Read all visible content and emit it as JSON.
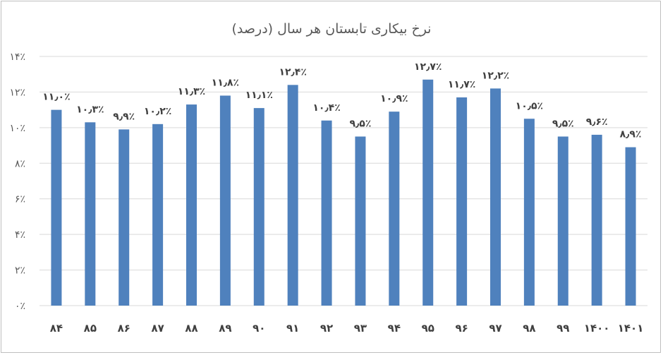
{
  "chart_data": {
    "type": "bar",
    "title": "نرخ بیکاری تابستان هر سال (درصد)",
    "xlabel": "",
    "ylabel": "",
    "categories": [
      "۸۴",
      "۸۵",
      "۸۶",
      "۸۷",
      "۸۸",
      "۸۹",
      "۹۰",
      "۹۱",
      "۹۲",
      "۹۳",
      "۹۴",
      "۹۵",
      "۹۶",
      "۹۷",
      "۹۸",
      "۹۹",
      "۱۴۰۰",
      "۱۴۰۱"
    ],
    "values": [
      11.0,
      10.3,
      9.9,
      10.2,
      11.3,
      11.8,
      11.1,
      12.4,
      10.4,
      9.5,
      10.9,
      12.7,
      11.7,
      12.2,
      10.5,
      9.5,
      9.6,
      8.9
    ],
    "data_labels": [
      "۱۱٫۰٪",
      "۱۰٫۳٪",
      "۹٫۹٪",
      "۱۰٫۲٪",
      "۱۱٫۳٪",
      "۱۱٫۸٪",
      "۱۱٫۱٪",
      "۱۲٫۴٪",
      "۱۰٫۴٪",
      "۹٫۵٪",
      "۱۰٫۹٪",
      "۱۲٫۷٪",
      "۱۱٫۷٪",
      "۱۲٫۲٪",
      "۱۰٫۵٪",
      "۹٫۵٪",
      "۹٫۶٪",
      "۸٫۹٪"
    ],
    "ylim": [
      0,
      14
    ],
    "yticks": [
      0,
      2,
      4,
      6,
      8,
      10,
      12,
      14
    ],
    "ytick_labels": [
      "۰٪",
      "۲٪",
      "۴٪",
      "۶٪",
      "۸٪",
      "۱۰٪",
      "۱۲٪",
      "۱۴٪"
    ],
    "grid": true,
    "legend": "none",
    "bar_color": "#4f81bd"
  }
}
